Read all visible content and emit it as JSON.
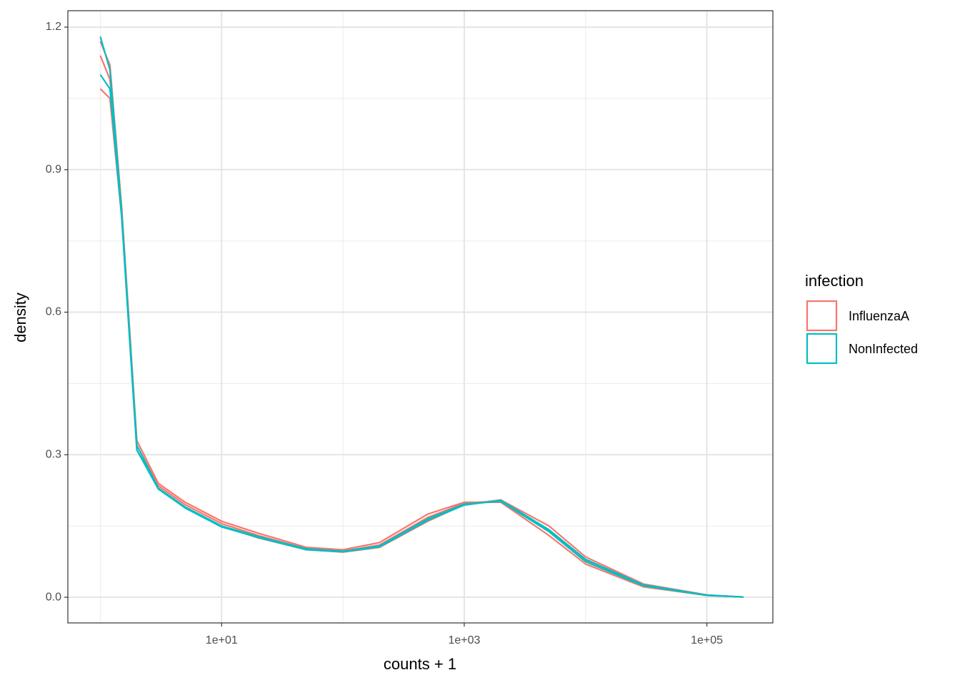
{
  "chart_data": {
    "type": "line",
    "x_label": "counts + 1",
    "y_label": "density",
    "legend_title": "infection",
    "log_x": true,
    "grid": true,
    "legend": "right",
    "x": [
      1,
      1.2,
      1.5,
      2,
      3,
      5,
      10,
      20,
      50,
      100,
      200,
      500,
      1000,
      2000,
      5000,
      10000,
      30000,
      100000,
      200000
    ],
    "series": [
      {
        "name": "InfluenzaA",
        "color": "#F8766D",
        "values": [
          1.17,
          1.12,
          0.82,
          0.33,
          0.24,
          0.2,
          0.16,
          0.135,
          0.105,
          0.1,
          0.115,
          0.175,
          0.2,
          0.2,
          0.13,
          0.07,
          0.022,
          0.004,
          0.0005
        ]
      },
      {
        "name": "InfluenzaA",
        "color": "#F8766D",
        "values": [
          1.07,
          1.05,
          0.8,
          0.31,
          0.23,
          0.19,
          0.15,
          0.125,
          0.1,
          0.095,
          0.105,
          0.16,
          0.195,
          0.205,
          0.15,
          0.085,
          0.028,
          0.005,
          0.0005
        ]
      },
      {
        "name": "InfluenzaA",
        "color": "#F8766D",
        "values": [
          1.14,
          1.09,
          0.81,
          0.32,
          0.235,
          0.195,
          0.155,
          0.13,
          0.102,
          0.097,
          0.11,
          0.168,
          0.198,
          0.203,
          0.14,
          0.078,
          0.025,
          0.0045,
          0.0005
        ]
      },
      {
        "name": "NonInfected",
        "color": "#00BFC4",
        "values": [
          1.18,
          1.11,
          0.81,
          0.32,
          0.23,
          0.19,
          0.15,
          0.128,
          0.102,
          0.097,
          0.108,
          0.165,
          0.196,
          0.202,
          0.138,
          0.075,
          0.024,
          0.004,
          0.0005
        ]
      },
      {
        "name": "NonInfected",
        "color": "#00BFC4",
        "values": [
          1.1,
          1.07,
          0.8,
          0.31,
          0.228,
          0.188,
          0.148,
          0.126,
          0.1,
          0.096,
          0.106,
          0.162,
          0.194,
          0.204,
          0.142,
          0.08,
          0.026,
          0.0045,
          0.0005
        ]
      }
    ],
    "xlim": [
      0.54,
      350000
    ],
    "ylim": [
      -0.054,
      1.2345
    ],
    "xticks": [
      {
        "value": 10,
        "label": "1e+01"
      },
      {
        "value": 1000,
        "label": "1e+03"
      },
      {
        "value": 100000,
        "label": "1e+05"
      }
    ],
    "x_minor_ticks": [
      1,
      100,
      10000
    ],
    "yticks": [
      {
        "value": 0,
        "label": "0.0"
      },
      0.3,
      0.6,
      0.9,
      1.2
    ],
    "y_minor_ticks": [
      0.15,
      0.45,
      0.75,
      1.05
    ]
  }
}
